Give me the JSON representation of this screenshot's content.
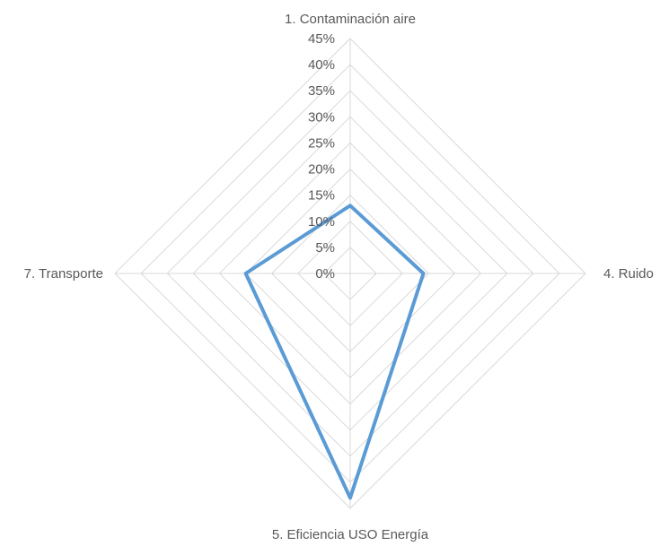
{
  "chart_data": {
    "type": "radar",
    "axes": [
      "1. Contaminación aire",
      "4. Ruido",
      "5. Eficiencia USO Energía",
      "7. Transporte"
    ],
    "tick_labels": [
      "0%",
      "5%",
      "10%",
      "15%",
      "20%",
      "25%",
      "30%",
      "35%",
      "40%",
      "45%"
    ],
    "rlim": [
      0,
      45
    ],
    "tick_step": 5,
    "grid": true,
    "legend": "none",
    "series": [
      {
        "values": [
          13,
          14,
          43,
          20
        ],
        "color": "#5b9bd5"
      }
    ]
  }
}
